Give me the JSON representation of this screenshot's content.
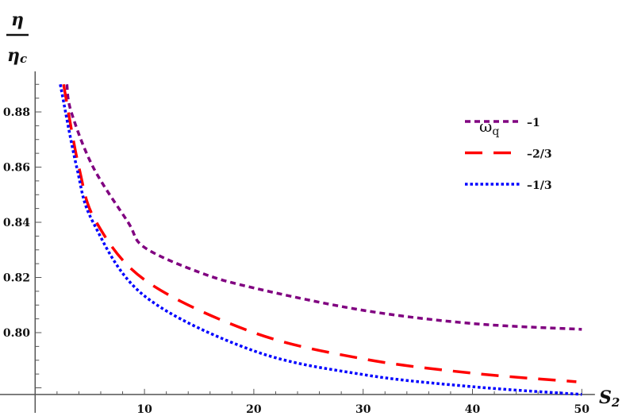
{
  "chart_data": {
    "type": "line",
    "xlabel": "S",
    "xlabel_sub": "2",
    "ylabel_num": "η",
    "ylabel_den": "η",
    "ylabel_den_sub": "c",
    "xlim": [
      0,
      51.2
    ],
    "ylim": [
      0.7776,
      0.8947
    ],
    "x_ticks": [
      10,
      20,
      30,
      40,
      50
    ],
    "y_ticks": [
      0.8,
      0.82,
      0.84,
      0.86,
      0.88
    ],
    "y_tick_labels": [
      "0.80",
      "0.82",
      "0.84",
      "0.86",
      "0.88"
    ],
    "grid": false,
    "legend": {
      "title": "ω",
      "title_sub": "q",
      "placement": "top-right"
    },
    "series": [
      {
        "name": "–1",
        "color": "#800080",
        "dash": "dashed",
        "points": [
          [
            2.9,
            0.89
          ],
          [
            3.3,
            0.88
          ],
          [
            5.3,
            0.86
          ],
          [
            8.5,
            0.84
          ],
          [
            10,
            0.8309
          ],
          [
            15,
            0.8219
          ],
          [
            20,
            0.8162
          ],
          [
            30,
            0.8081
          ],
          [
            40,
            0.8033
          ],
          [
            50,
            0.8012
          ]
        ]
      },
      {
        "name": "–2/3",
        "color": "#ff0000",
        "dash": "long-dashed",
        "points": [
          [
            2.6,
            0.89
          ],
          [
            4.0,
            0.86
          ],
          [
            5.6,
            0.84
          ],
          [
            10.2,
            0.8186
          ],
          [
            20,
            0.8
          ],
          [
            30,
            0.7905
          ],
          [
            40,
            0.7853
          ],
          [
            49.5,
            0.7822
          ]
        ]
      },
      {
        "name": "–1/3",
        "color": "#0000ff",
        "dash": "dotted",
        "points": [
          [
            2.3,
            0.89
          ],
          [
            3.8,
            0.86
          ],
          [
            5.3,
            0.84
          ],
          [
            10,
            0.8133
          ],
          [
            20,
            0.7934
          ],
          [
            30,
            0.7848
          ],
          [
            40,
            0.7804
          ],
          [
            50,
            0.7776
          ]
        ]
      }
    ]
  }
}
